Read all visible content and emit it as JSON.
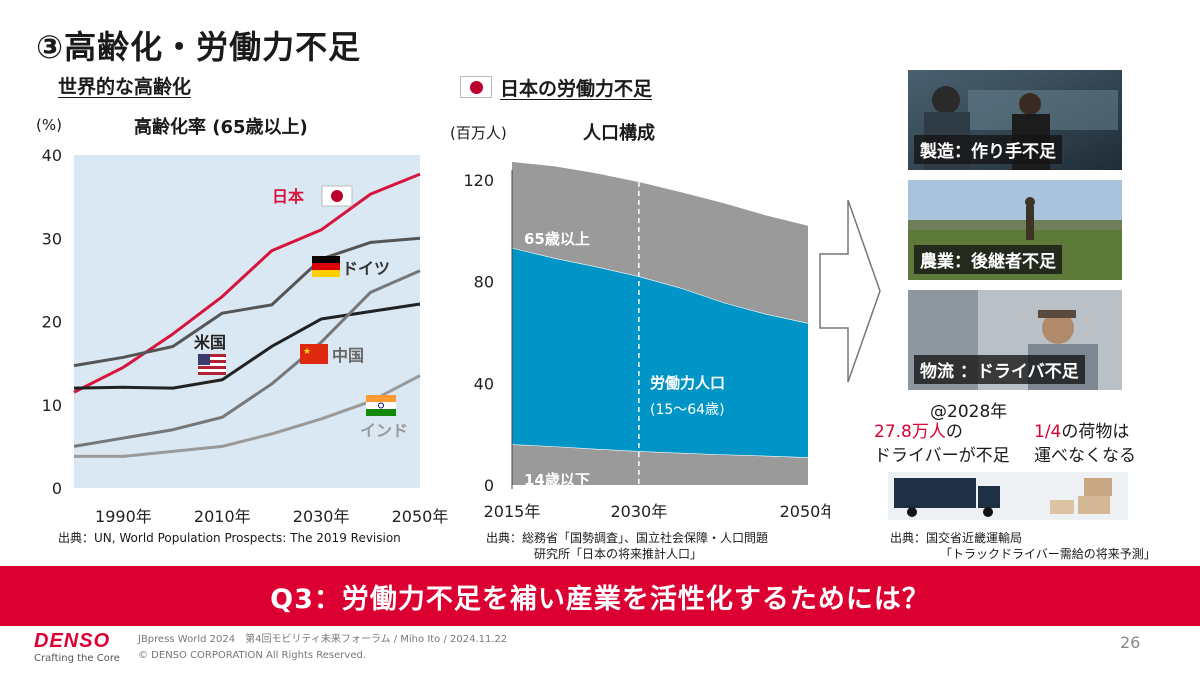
{
  "slide": {
    "title": "③高齢化・労働力不足",
    "banner": "Q3：労働力不足を補い産業を活性化するためには？",
    "page_number": "26"
  },
  "left_section": {
    "heading": "世界的な高齢化",
    "chart_title": "高齢化率 (65歳以上)",
    "unit": "(%)",
    "source": "出典：UN, World Population Prospects: The 2019 Revision",
    "labels": {
      "japan": "日本",
      "germany": "ドイツ",
      "usa": "米国",
      "china": "中国",
      "india": "インド"
    }
  },
  "middle_section": {
    "heading": "日本の労働力不足",
    "chart_title": "人口構成",
    "unit": "(百万人)",
    "band_labels": {
      "elderly": "65歳以上",
      "working_line1": "労働力人口",
      "working_line2": "(15～64歳)",
      "young": "14歳以下"
    },
    "source_line1": "出典：総務省「国勢調査」、国立社会保障・人口問題",
    "source_line2": "研究所「日本の将来推計人口」"
  },
  "right_section": {
    "photos": [
      {
        "label": "製造：作り手不足"
      },
      {
        "label": "農業：後継者不足"
      },
      {
        "label": "物流 ：ドライバ不足"
      }
    ],
    "year_note": "@2028年",
    "stat1_value": "27.8万人",
    "stat1_suffix": "の",
    "stat1_line2": "ドライバーが不足",
    "stat2_value": "1/4",
    "stat2_suffix": "の荷物は",
    "stat2_line2": "運べなくなる",
    "source_line1": "出典：国交省近畿運輸局",
    "source_line2": "「トラックドライバー需給の将来予測」"
  },
  "footer": {
    "logo": "DENSO",
    "tagline": "Crafting the Core",
    "event": "JBpress World 2024　第4回モビリティ未来フォーラム / Miho Ito / 2024.11.22",
    "copyright": "© DENSO CORPORATION All Rights Reserved."
  },
  "colors": {
    "accent_red": "#dc0032",
    "japan_line": "#d7143c",
    "aging_bg": "#d9e8f3",
    "working_band": "#0095c6",
    "elderly_band": "#9a9a9a",
    "young_band": "#9a9a9a"
  },
  "chart_data": [
    {
      "type": "line",
      "title": "高齢化率 (65歳以上)",
      "ylabel": "(%)",
      "x": [
        1980,
        1990,
        2000,
        2010,
        2020,
        2030,
        2040,
        2050
      ],
      "xticks": [
        "1990年",
        "2010年",
        "2030年",
        "2050年"
      ],
      "xtick_values": [
        1990,
        2010,
        2030,
        2050
      ],
      "yticks": [
        0,
        10,
        20,
        30,
        40
      ],
      "xlim": [
        1980,
        2050
      ],
      "ylim": [
        0,
        40
      ],
      "grid": false,
      "series": [
        {
          "name": "日本",
          "color": "#d7143c",
          "values": [
            11.5,
            14.5,
            18.5,
            23.0,
            28.5,
            31.0,
            35.3,
            37.7
          ]
        },
        {
          "name": "ドイツ",
          "color": "#555555",
          "values": [
            14.7,
            15.7,
            17.0,
            21.0,
            22.0,
            27.5,
            29.5,
            30.0
          ]
        },
        {
          "name": "米国",
          "color": "#222222",
          "values": [
            12.0,
            12.1,
            12.0,
            13.0,
            17.0,
            20.3,
            21.2,
            22.1
          ]
        },
        {
          "name": "中国",
          "color": "#777777",
          "values": [
            5.0,
            6.0,
            7.0,
            8.5,
            12.5,
            17.5,
            23.5,
            26.1
          ]
        },
        {
          "name": "インド",
          "color": "#9a9a9a",
          "values": [
            3.8,
            3.8,
            4.4,
            5.0,
            6.5,
            8.3,
            10.4,
            13.5
          ]
        }
      ]
    },
    {
      "type": "area",
      "title": "人口構成",
      "ylabel": "(百万人)",
      "x": [
        2015,
        2020,
        2025,
        2030,
        2035,
        2040,
        2045,
        2050
      ],
      "xticks": [
        "2015年",
        "2030年",
        "2050年"
      ],
      "xtick_values": [
        2015,
        2030,
        2050
      ],
      "yticks": [
        0,
        40,
        80,
        120
      ],
      "xlim": [
        2015,
        2050
      ],
      "ylim": [
        0,
        120
      ],
      "divider_year": 2030,
      "series": [
        {
          "name": "14歳以下",
          "color": "#9a9a9a",
          "values": [
            15.9,
            15.1,
            14.1,
            13.2,
            12.5,
            11.9,
            11.4,
            10.8
          ]
        },
        {
          "name": "労働力人口 (15～64歳)",
          "color": "#0095c6",
          "values": [
            77.3,
            74.1,
            71.7,
            68.8,
            64.9,
            59.8,
            55.8,
            52.8
          ]
        },
        {
          "name": "65歳以上",
          "color": "#9a9a9a",
          "values": [
            33.9,
            36.2,
            36.8,
            37.2,
            37.8,
            39.2,
            38.9,
            38.4
          ]
        }
      ]
    }
  ]
}
